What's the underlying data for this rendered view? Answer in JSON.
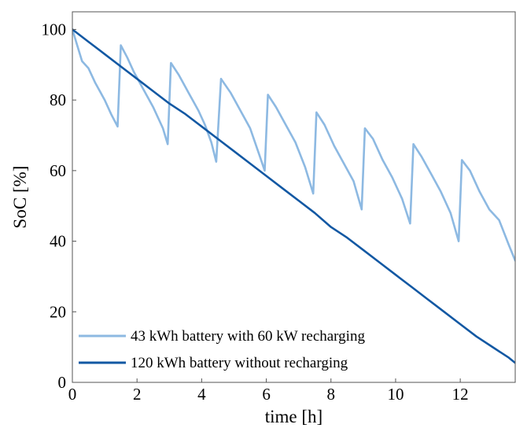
{
  "chart_data": {
    "type": "line",
    "xlabel": "time [h]",
    "ylabel": "SoC [%]",
    "xlim": [
      0,
      13.7
    ],
    "ylim": [
      0,
      105
    ],
    "xticks": [
      0,
      2,
      4,
      6,
      8,
      10,
      12
    ],
    "yticks": [
      0,
      20,
      40,
      60,
      80,
      100
    ],
    "grid": false,
    "legend_position": "bottom-left",
    "series": [
      {
        "name": "43 kWh battery with 60 kW recharging",
        "color": "#8db9e2",
        "points": [
          [
            0,
            100
          ],
          [
            0.3,
            91
          ],
          [
            0.5,
            89
          ],
          [
            0.7,
            85
          ],
          [
            1.0,
            80
          ],
          [
            1.2,
            76
          ],
          [
            1.4,
            72.5
          ],
          [
            1.5,
            95.5
          ],
          [
            1.7,
            92
          ],
          [
            1.9,
            88
          ],
          [
            2.2,
            83
          ],
          [
            2.5,
            78
          ],
          [
            2.8,
            72
          ],
          [
            2.95,
            67.5
          ],
          [
            3.05,
            90.5
          ],
          [
            3.3,
            87
          ],
          [
            3.6,
            82
          ],
          [
            3.9,
            77
          ],
          [
            4.1,
            73
          ],
          [
            4.3,
            68
          ],
          [
            4.45,
            62.5
          ],
          [
            4.6,
            86
          ],
          [
            4.9,
            82
          ],
          [
            5.2,
            77
          ],
          [
            5.5,
            72
          ],
          [
            5.8,
            64
          ],
          [
            5.95,
            60
          ],
          [
            6.05,
            81.5
          ],
          [
            6.3,
            78
          ],
          [
            6.6,
            73
          ],
          [
            6.9,
            68
          ],
          [
            7.2,
            61
          ],
          [
            7.45,
            53.5
          ],
          [
            7.55,
            76.5
          ],
          [
            7.8,
            73
          ],
          [
            8.1,
            67
          ],
          [
            8.4,
            62
          ],
          [
            8.7,
            57
          ],
          [
            8.95,
            49
          ],
          [
            9.05,
            72
          ],
          [
            9.3,
            69
          ],
          [
            9.6,
            63
          ],
          [
            9.9,
            58
          ],
          [
            10.2,
            52
          ],
          [
            10.45,
            45
          ],
          [
            10.55,
            67.5
          ],
          [
            10.8,
            64
          ],
          [
            11.1,
            59
          ],
          [
            11.4,
            54
          ],
          [
            11.7,
            48
          ],
          [
            11.95,
            40
          ],
          [
            12.05,
            63
          ],
          [
            12.3,
            60
          ],
          [
            12.6,
            54
          ],
          [
            12.9,
            49
          ],
          [
            13.2,
            46
          ],
          [
            13.5,
            39
          ],
          [
            13.7,
            34.5
          ]
        ]
      },
      {
        "name": "120 kWh battery without recharging",
        "color": "#1258a3",
        "points": [
          [
            0,
            100
          ],
          [
            0.5,
            96.5
          ],
          [
            1,
            93
          ],
          [
            1.5,
            89.5
          ],
          [
            2,
            86
          ],
          [
            2.5,
            82.5
          ],
          [
            3,
            79
          ],
          [
            3.5,
            76
          ],
          [
            4,
            72.5
          ],
          [
            4.5,
            69
          ],
          [
            5,
            65.5
          ],
          [
            5.5,
            62
          ],
          [
            6,
            58.5
          ],
          [
            6.5,
            55
          ],
          [
            7,
            51.5
          ],
          [
            7.5,
            48
          ],
          [
            8,
            44
          ],
          [
            8.5,
            41
          ],
          [
            9,
            37.5
          ],
          [
            9.5,
            34
          ],
          [
            10,
            30.5
          ],
          [
            10.5,
            27
          ],
          [
            11,
            23.5
          ],
          [
            11.5,
            20
          ],
          [
            12,
            16.5
          ],
          [
            12.5,
            13
          ],
          [
            13,
            10
          ],
          [
            13.5,
            7
          ],
          [
            13.7,
            5.5
          ]
        ]
      }
    ]
  }
}
